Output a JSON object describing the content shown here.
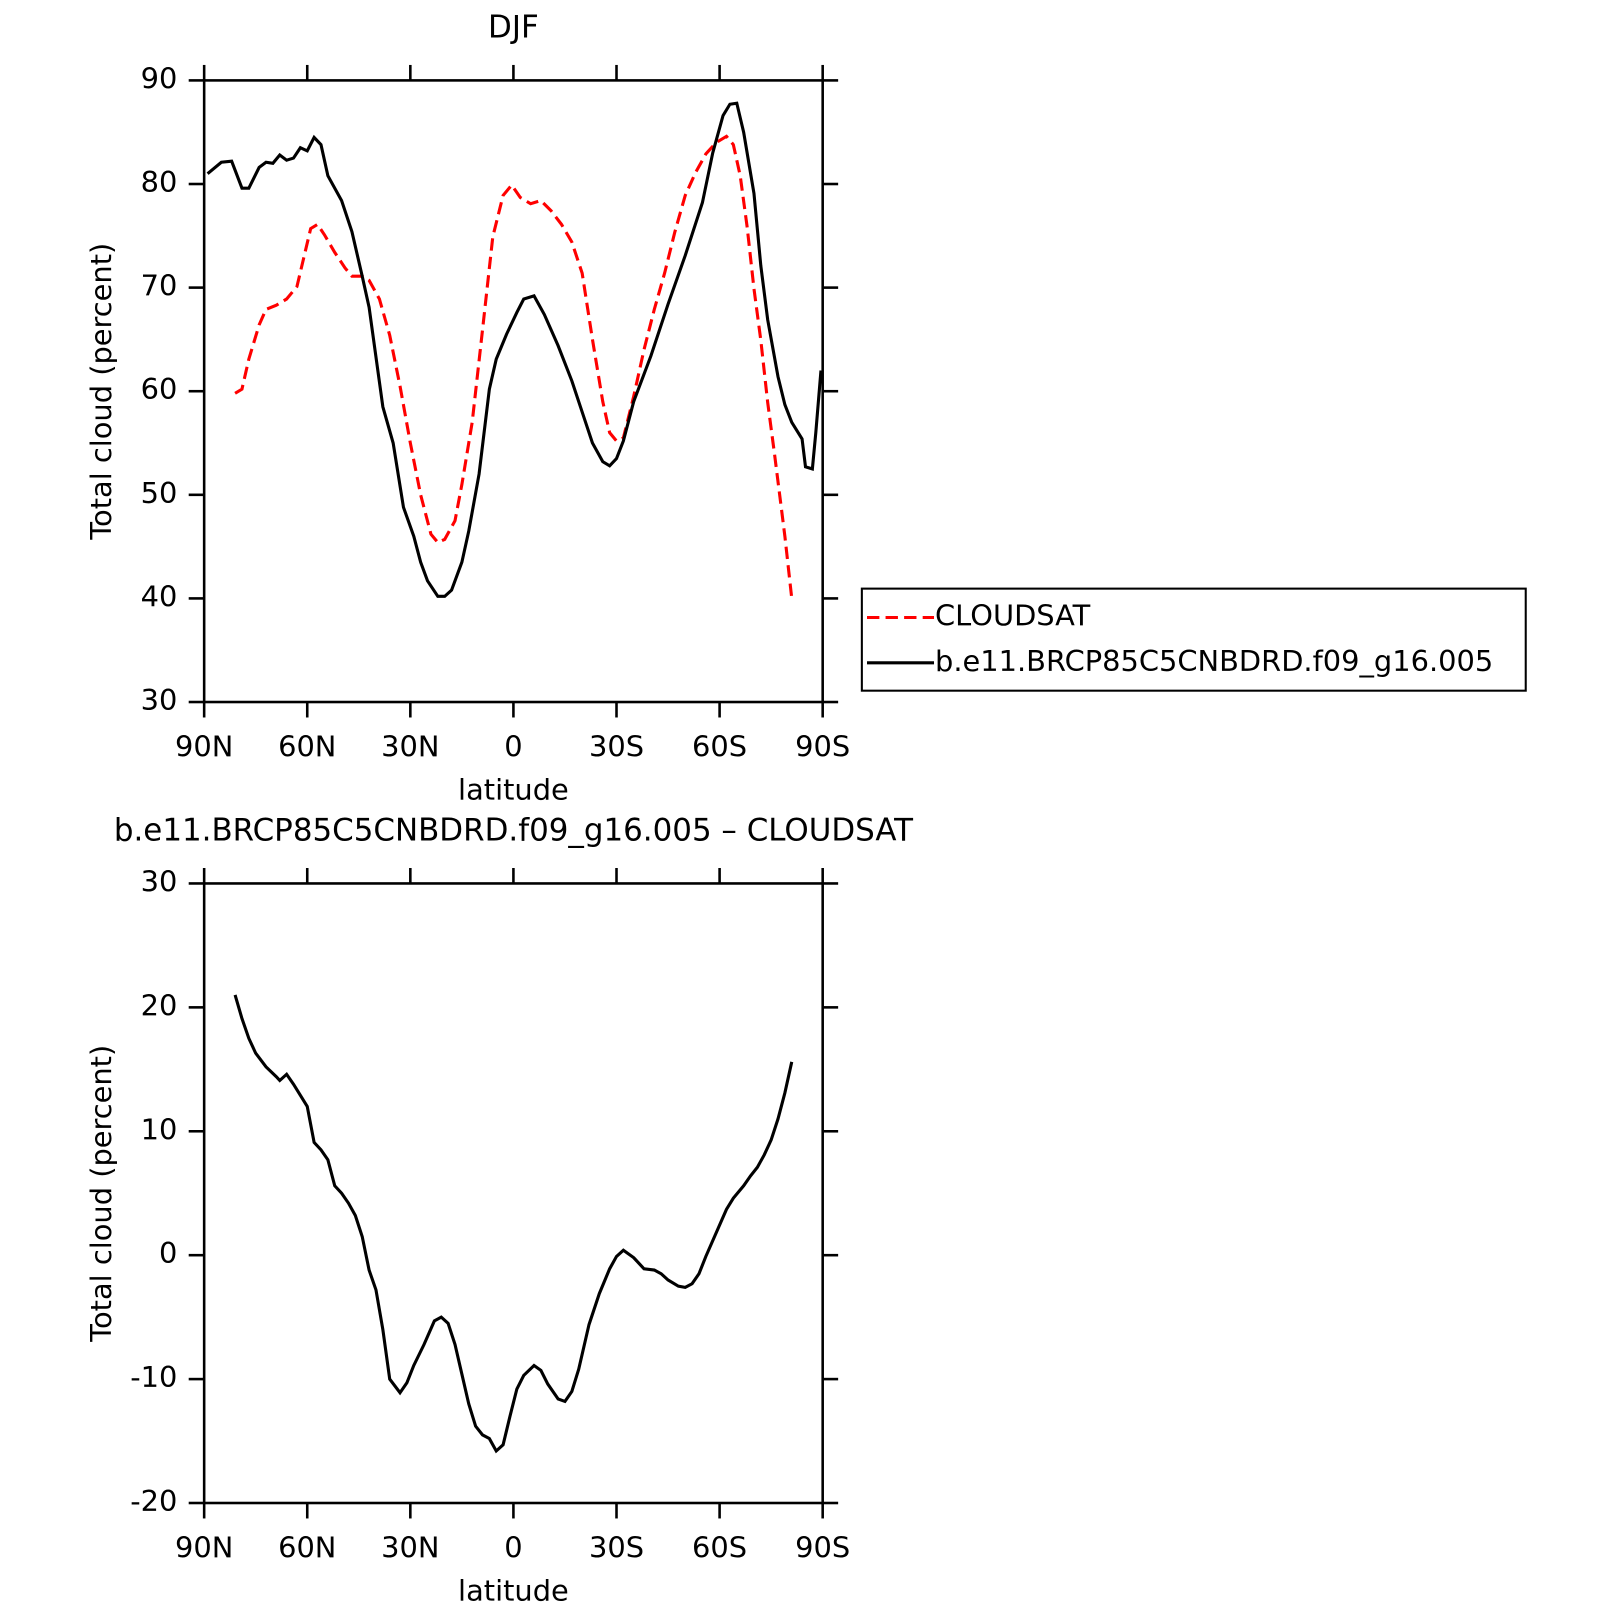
{
  "chart_data": [
    {
      "type": "line",
      "title": "DJF",
      "xlabel": "latitude",
      "ylabel": "Total cloud (percent)",
      "xlim": [
        90,
        -90
      ],
      "ylim": [
        30,
        90
      ],
      "xticks": [
        {
          "value": 90,
          "label": "90N"
        },
        {
          "value": 60,
          "label": "60N"
        },
        {
          "value": 30,
          "label": "30N"
        },
        0,
        {
          "value": -30,
          "label": "30S"
        },
        {
          "value": -60,
          "label": "60S"
        },
        {
          "value": -90,
          "label": "90S"
        }
      ],
      "yticks": [
        30,
        40,
        50,
        60,
        70,
        80,
        90
      ],
      "legend": "right",
      "series": [
        {
          "name": "CLOUDSAT",
          "color": "#ff0000",
          "dash": true,
          "x": [
            81,
            79,
            77,
            74,
            72,
            69,
            66,
            63,
            61,
            59,
            57,
            55,
            52,
            49,
            47,
            44,
            42,
            39,
            36,
            33,
            30,
            27,
            24,
            22,
            20,
            17,
            15,
            12,
            9,
            6,
            3,
            0.5,
            -2,
            -5,
            -8,
            -11,
            -14,
            -17,
            -20,
            -23,
            -26,
            -28,
            -30,
            -32,
            -35,
            -38,
            -41,
            -44,
            -47,
            -50,
            -53,
            -56,
            -59,
            -62,
            -64,
            -66,
            -68,
            -70,
            -72,
            -74,
            -76,
            -79,
            -81
          ],
          "values": [
            59.8,
            60.2,
            63.1,
            66.4,
            67.9,
            68.3,
            68.9,
            70.1,
            72.9,
            75.7,
            76.1,
            75.1,
            73.4,
            71.9,
            71.1,
            71.1,
            70.7,
            68.9,
            65.4,
            60.5,
            55.0,
            50.0,
            46.2,
            45.4,
            45.7,
            47.5,
            51.0,
            57.0,
            65.9,
            74.9,
            78.9,
            79.9,
            78.7,
            78.1,
            78.4,
            77.4,
            76.1,
            74.4,
            71.4,
            65.0,
            59.0,
            56.0,
            55.2,
            55.5,
            59.5,
            64.0,
            67.9,
            71.4,
            75.4,
            78.9,
            81.1,
            82.9,
            84.0,
            84.6,
            83.8,
            80.8,
            75.9,
            69.9,
            64.9,
            58.9,
            53.9,
            46.0,
            40.0
          ]
        },
        {
          "name": "b.e11.BRCP85C5CNBDRD.f09_g16.005",
          "color": "#000000",
          "dash": false,
          "x": [
            89,
            85,
            82,
            79,
            77,
            74,
            72,
            70,
            68,
            66,
            64,
            62,
            60,
            58,
            56,
            54,
            50,
            47,
            44,
            42,
            38,
            35,
            32,
            29,
            27,
            25,
            22,
            20,
            18,
            15,
            13,
            10,
            7,
            5,
            2,
            -1,
            -3,
            -6,
            -9,
            -13,
            -17,
            -20,
            -23,
            -26,
            -28,
            -30,
            -32,
            -35,
            -40,
            -45,
            -50,
            -55,
            -58,
            -61,
            -63,
            -65,
            -67,
            -70,
            -72,
            -74,
            -77,
            -79,
            -81,
            -84,
            -85,
            -87,
            -88,
            -89.5
          ],
          "values": [
            81.0,
            82.1,
            82.2,
            79.6,
            79.6,
            81.6,
            82.1,
            82.0,
            82.8,
            82.3,
            82.5,
            83.5,
            83.2,
            84.5,
            83.8,
            80.8,
            78.4,
            75.4,
            71.1,
            68.1,
            58.5,
            55.0,
            48.8,
            46.0,
            43.5,
            41.7,
            40.2,
            40.2,
            40.8,
            43.5,
            46.5,
            52.0,
            60.2,
            63.1,
            65.5,
            67.6,
            68.9,
            69.2,
            67.4,
            64.4,
            61.0,
            58.0,
            55.0,
            53.2,
            52.8,
            53.5,
            55.2,
            59.0,
            63.4,
            68.4,
            73.1,
            78.2,
            83.0,
            86.6,
            87.7,
            87.8,
            85.0,
            79.1,
            72.1,
            66.9,
            61.4,
            58.7,
            57.0,
            55.4,
            52.7,
            52.5,
            56.0,
            62.0
          ]
        }
      ]
    },
    {
      "type": "line",
      "title": "b.e11.BRCP85C5CNBDRD.f09_g16.005 – CLOUDSAT",
      "xlabel": "latitude",
      "ylabel": "Total cloud (percent)",
      "xlim": [
        90,
        -90
      ],
      "ylim": [
        -20,
        30
      ],
      "xticks": [
        {
          "value": 90,
          "label": "90N"
        },
        {
          "value": 60,
          "label": "60N"
        },
        {
          "value": 30,
          "label": "30N"
        },
        0,
        {
          "value": -30,
          "label": "30S"
        },
        {
          "value": -60,
          "label": "60S"
        },
        {
          "value": -90,
          "label": "90S"
        }
      ],
      "yticks": [
        -20,
        -10,
        0,
        10,
        20,
        30
      ],
      "series": [
        {
          "color": "#000000",
          "dash": false,
          "x": [
            81,
            79,
            77,
            75,
            72,
            69,
            68,
            66,
            64,
            62,
            60,
            58,
            56,
            54,
            52,
            50,
            48,
            46,
            44,
            42,
            40,
            38,
            36,
            33,
            31,
            29,
            26,
            23,
            21,
            19,
            17,
            15,
            13,
            11,
            9,
            7,
            5,
            3,
            1,
            -1,
            -3,
            -6,
            -8,
            -10,
            -13,
            -15,
            -17,
            -19,
            -22,
            -25,
            -28,
            -30,
            -32,
            -35,
            -38,
            -41,
            -43,
            -45,
            -48,
            -50,
            -52,
            -54,
            -56,
            -59,
            -62,
            -64,
            -67,
            -69,
            -71,
            -73,
            -75,
            -77,
            -79,
            -81
          ],
          "values": [
            21.0,
            19.1,
            17.5,
            16.3,
            15.2,
            14.4,
            14.1,
            14.6,
            13.8,
            12.9,
            12.0,
            9.1,
            8.5,
            7.7,
            5.6,
            5.0,
            4.2,
            3.2,
            1.5,
            -1.2,
            -2.8,
            -6.0,
            -10.0,
            -11.1,
            -10.3,
            -8.9,
            -7.2,
            -5.3,
            -5.0,
            -5.5,
            -7.2,
            -9.6,
            -12.0,
            -13.8,
            -14.5,
            -14.8,
            -15.8,
            -15.3,
            -13.0,
            -10.8,
            -9.7,
            -8.9,
            -9.3,
            -10.4,
            -11.6,
            -11.8,
            -11.0,
            -9.2,
            -5.6,
            -3.1,
            -1.1,
            -0.1,
            0.4,
            -0.2,
            -1.1,
            -1.2,
            -1.5,
            -2.0,
            -2.5,
            -2.6,
            -2.3,
            -1.5,
            -0.1,
            1.8,
            3.7,
            4.6,
            5.6,
            6.4,
            7.1,
            8.1,
            9.3,
            11.0,
            13.1,
            15.6
          ]
        }
      ]
    }
  ]
}
